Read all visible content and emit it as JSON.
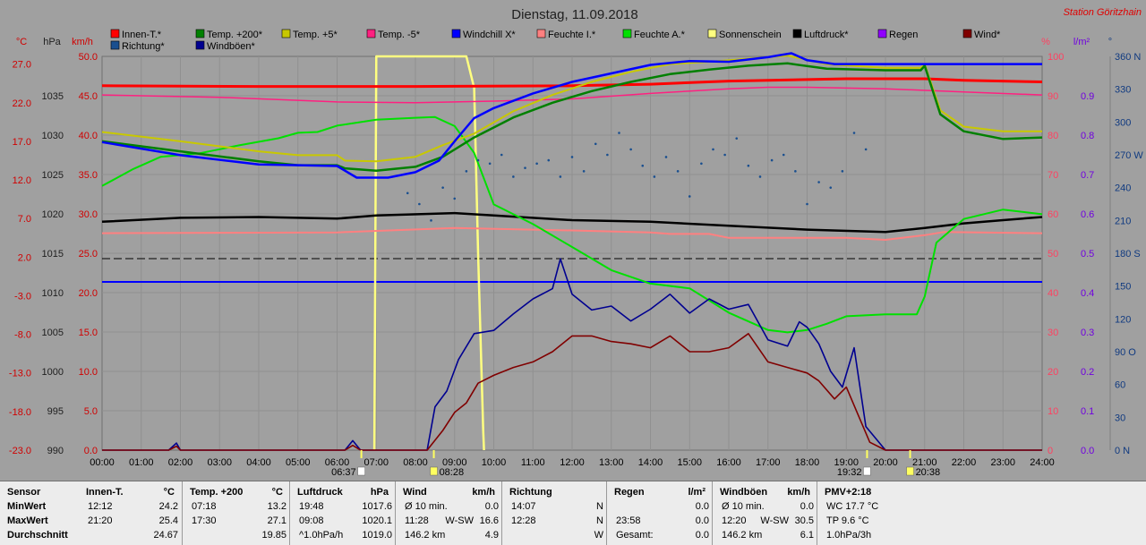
{
  "chart_data": {
    "type": "line",
    "title": "Dienstag, 11.09.2018",
    "station": "Station Göritzhain",
    "axes": {
      "celsius": {
        "unit": "°C",
        "ticks": [
          -23.0,
          -18.0,
          -13.0,
          -8.0,
          -3.0,
          2.0,
          7.0,
          12.0,
          17.0,
          22.0,
          27.0
        ],
        "range": [
          -23,
          28
        ]
      },
      "hpa": {
        "unit": "hPa",
        "ticks": [
          990,
          995,
          1000,
          1005,
          1010,
          1015,
          1020,
          1025,
          1030,
          1035
        ],
        "range": [
          990,
          1040
        ]
      },
      "kmh": {
        "unit": "km/h",
        "ticks": [
          0.0,
          5.0,
          10.0,
          15.0,
          20.0,
          25.0,
          30.0,
          35.0,
          40.0,
          45.0,
          50.0
        ],
        "range": [
          0,
          50
        ]
      },
      "percent": {
        "unit": "%",
        "ticks": [
          0,
          10,
          20,
          30,
          40,
          50,
          60,
          70,
          80,
          90,
          100
        ],
        "range": [
          0,
          100
        ]
      },
      "rain": {
        "unit": "l/m²",
        "ticks": [
          0.0,
          0.1,
          0.2,
          0.3,
          0.4,
          0.5,
          0.6,
          0.7,
          0.8,
          0.9
        ],
        "range": [
          0,
          1
        ]
      },
      "direction": {
        "unit": "°",
        "ticks": [
          "0 N",
          "30",
          "60",
          "90 O",
          "120",
          "150",
          "180 S",
          "210",
          "240",
          "270 W",
          "300",
          "330",
          "360 N"
        ],
        "range": [
          0,
          360
        ]
      },
      "time": {
        "ticks": [
          "00:00",
          "01:00",
          "02:00",
          "03:00",
          "04:00",
          "05:00",
          "06:00",
          "07:00",
          "08:00",
          "09:00",
          "10:00",
          "11:00",
          "12:00",
          "13:00",
          "14:00",
          "15:00",
          "16:00",
          "17:00",
          "18:00",
          "19:00",
          "20:00",
          "21:00",
          "22:00",
          "23:00",
          "24:00"
        ],
        "range": [
          0,
          24
        ]
      }
    },
    "markers": {
      "sunrise": "06:37",
      "sunrise_h": 6.62,
      "noon": "08:28",
      "noon_h": 8.47,
      "sunset": "19:32",
      "sunset_h": 19.53,
      "moon": "20:38",
      "moon_h": 20.63
    },
    "legend": [
      {
        "name": "Innen-T.*",
        "color": "#ff0000"
      },
      {
        "name": "Temp. +200*",
        "color": "#008000"
      },
      {
        "name": "Temp. +5*",
        "color": "#c8c800"
      },
      {
        "name": "Temp. -5*",
        "color": "#ff2080"
      },
      {
        "name": "Windchill X*",
        "color": "#0000ff"
      },
      {
        "name": "Feuchte I.*",
        "color": "#ff8080"
      },
      {
        "name": "Feuchte A.*",
        "color": "#00e000"
      },
      {
        "name": "Sonnenschein",
        "color": "#ffff80"
      },
      {
        "name": "Luftdruck*",
        "color": "#000000"
      },
      {
        "name": "Regen",
        "color": "#9000ff"
      },
      {
        "name": "Wind*",
        "color": "#800000"
      },
      {
        "name": "Richtung*",
        "color": "#1a4f8f"
      },
      {
        "name": "Windböen*",
        "color": "#000090"
      }
    ],
    "series": [
      {
        "name": "Innen-T.*",
        "axis": "celsius",
        "color": "#ff0000",
        "x": [
          0,
          4,
          8,
          12,
          14,
          16,
          18,
          19,
          21,
          22,
          24
        ],
        "y": [
          24.2,
          24.1,
          24.1,
          24.2,
          24.4,
          24.8,
          25.0,
          25.1,
          25.1,
          24.9,
          24.7
        ]
      },
      {
        "name": "Temp. +200*",
        "axis": "celsius",
        "color": "#008000",
        "x": [
          0,
          2,
          4,
          5,
          6,
          6.2,
          7,
          8,
          8.7,
          9.5,
          10.5,
          11.5,
          12.5,
          13.5,
          14.5,
          15.5,
          16.5,
          17.5,
          18.5,
          20,
          20.9,
          21,
          21.4,
          22,
          23,
          24
        ],
        "y": [
          17.0,
          15.7,
          14.4,
          13.9,
          13.9,
          13.5,
          13.2,
          13.7,
          15.0,
          17.5,
          20.1,
          22.0,
          23.5,
          24.7,
          25.7,
          26.3,
          26.8,
          27.1,
          26.4,
          26.2,
          26.2,
          26.8,
          20.5,
          18.3,
          17.3,
          17.5
        ]
      },
      {
        "name": "Temp. +5*",
        "axis": "celsius",
        "color": "#c8c800",
        "x": [
          0,
          2,
          4,
          5,
          6,
          6.2,
          7,
          8,
          8.7,
          9.5,
          10.5,
          11.5,
          12.5,
          13.5,
          14.5,
          15.5,
          16.5,
          17.5,
          18.5,
          20,
          20.9,
          21,
          21.4,
          22,
          23,
          24
        ],
        "y": [
          18.2,
          17.0,
          15.7,
          15.2,
          15.2,
          14.5,
          14.4,
          15.0,
          16.5,
          18.0,
          20.9,
          23.0,
          24.7,
          26.0,
          27.0,
          27.3,
          27.7,
          28.1,
          27.0,
          26.5,
          26.5,
          27.0,
          21.0,
          18.9,
          18.3,
          18.3
        ]
      },
      {
        "name": "Temp. -5*",
        "axis": "celsius",
        "color": "#ff2080",
        "x": [
          0,
          3,
          6,
          8,
          10,
          12,
          14,
          16,
          17,
          18,
          20,
          22,
          24
        ],
        "y": [
          23.0,
          22.7,
          22.1,
          22.0,
          22.2,
          22.5,
          23.2,
          23.8,
          24.0,
          24.0,
          23.8,
          23.4,
          23.0
        ]
      },
      {
        "name": "Windchill X*",
        "axis": "celsius",
        "color": "#0000ff",
        "x": [
          0,
          2,
          4,
          5,
          6,
          6.5,
          7.3,
          8,
          8.6,
          9,
          9.5,
          10,
          11,
          12,
          13,
          14,
          15,
          16,
          17,
          17.6,
          18,
          18.7,
          19.5,
          24
        ],
        "y": [
          16.9,
          15.2,
          14.0,
          13.9,
          13.8,
          12.3,
          12.3,
          13.0,
          14.5,
          17.0,
          20.0,
          21.3,
          23.2,
          24.7,
          25.8,
          26.9,
          27.4,
          27.3,
          27.9,
          28.4,
          27.5,
          27.0,
          27.0,
          27.0
        ]
      },
      {
        "name": "Feuchte I.*",
        "axis": "percent",
        "color": "#ff8080",
        "x": [
          0,
          6,
          9,
          12,
          14,
          14.5,
          15.5,
          16,
          18,
          19,
          20,
          21,
          21.5,
          24
        ],
        "y": [
          55.1,
          55.3,
          56.4,
          55.8,
          55.3,
          54.9,
          54.9,
          53.9,
          53.9,
          53.9,
          53.4,
          54.6,
          55.4,
          55.1
        ]
      },
      {
        "name": "Feuchte A.*",
        "axis": "percent",
        "color": "#00e000",
        "x": [
          0,
          0.8,
          1.5,
          2.5,
          3.5,
          4.5,
          5,
          5.5,
          6,
          7,
          8,
          8.5,
          9,
          9.5,
          10,
          11,
          12,
          13,
          14,
          15,
          16,
          17,
          17.5,
          18,
          18.5,
          19,
          20,
          20.8,
          21,
          21.3,
          22,
          23,
          24
        ],
        "y": [
          67.1,
          71.4,
          74.5,
          75.4,
          77.4,
          79.2,
          80.6,
          80.8,
          82.4,
          83.9,
          84.4,
          84.6,
          82.3,
          75.5,
          62.4,
          57.4,
          51.6,
          45.7,
          42.3,
          41.1,
          34.9,
          30.5,
          29.9,
          30.5,
          32.1,
          34.0,
          34.5,
          34.5,
          39.0,
          52.7,
          58.7,
          61.1,
          59.9
        ]
      },
      {
        "name": "Luftdruck*",
        "axis": "hpa",
        "color": "#000000",
        "x": [
          0,
          2,
          4,
          6,
          7,
          9,
          10,
          12,
          14,
          16,
          18,
          20,
          21,
          22,
          23,
          24
        ],
        "y": [
          1019.0,
          1019.5,
          1019.6,
          1019.4,
          1019.8,
          1020.1,
          1019.8,
          1019.2,
          1019.0,
          1018.5,
          1018.0,
          1017.7,
          1018.2,
          1018.8,
          1019.2,
          1019.6
        ]
      },
      {
        "name": "Sonnenschein",
        "axis": "percent",
        "color": "#ffff80",
        "x": [
          6.95,
          7.0,
          9.3,
          9.5,
          9.6,
          9.73,
          9.75
        ],
        "y": [
          0,
          100,
          100,
          92,
          50,
          5,
          0
        ]
      },
      {
        "name": "Wind*",
        "axis": "kmh",
        "color": "#800000",
        "x": [
          0,
          1.7,
          1.9,
          2.0,
          6.2,
          6.4,
          6.6,
          8.3,
          8.7,
          9.0,
          9.3,
          9.6,
          10,
          10.5,
          11,
          11.5,
          12,
          12.5,
          13,
          13.5,
          14,
          14.5,
          15,
          15.5,
          16,
          16.5,
          17,
          17.5,
          18,
          18.3,
          18.7,
          19.0,
          19.3,
          19.6,
          20,
          24
        ],
        "y": [
          0,
          0,
          0.5,
          0,
          0,
          0.6,
          0,
          0,
          2.5,
          4.8,
          6.0,
          8.5,
          9.5,
          10.5,
          11.2,
          12.5,
          14.5,
          14.5,
          13.8,
          13.5,
          13.0,
          14.5,
          12.5,
          12.5,
          13.0,
          14.8,
          11.2,
          10.5,
          9.8,
          8.8,
          6.5,
          8.0,
          4.5,
          1.0,
          0,
          0
        ]
      },
      {
        "name": "Windböen*",
        "axis": "kmh",
        "color": "#000090",
        "x": [
          0,
          1.7,
          1.9,
          2.0,
          6.2,
          6.4,
          6.6,
          8.3,
          8.5,
          8.8,
          9.1,
          9.5,
          10,
          10.5,
          11,
          11.5,
          11.7,
          12,
          12.5,
          13,
          13.5,
          14,
          14.5,
          15,
          15.5,
          16,
          16.5,
          17,
          17.5,
          17.8,
          18,
          18.3,
          18.6,
          18.9,
          19.2,
          19.5,
          20,
          24
        ],
        "y": [
          0,
          0,
          0.9,
          0,
          0,
          1.2,
          0,
          0,
          5.5,
          7.5,
          11.5,
          14.8,
          15.2,
          17.3,
          19.2,
          20.5,
          24.3,
          19.8,
          17.8,
          18.3,
          16.4,
          17.9,
          19.8,
          17.4,
          19.2,
          17.9,
          18.5,
          14.0,
          13.2,
          16.3,
          15.6,
          13.5,
          10.0,
          8.0,
          13.0,
          3.0,
          0,
          0
        ]
      },
      {
        "name": "Richtung*",
        "axis": "direction",
        "color": "#1a4f8f",
        "type": "scatter",
        "x": [
          7.8,
          8.1,
          8.4,
          8.7,
          9.0,
          9.3,
          9.6,
          9.9,
          10.2,
          10.5,
          10.8,
          11.1,
          11.4,
          11.7,
          12.0,
          12.3,
          12.6,
          12.9,
          13.2,
          13.5,
          13.8,
          14.1,
          14.4,
          14.7,
          15.0,
          15.3,
          15.6,
          15.9,
          16.2,
          16.5,
          16.8,
          17.1,
          17.4,
          17.7,
          18.0,
          18.3,
          18.6,
          18.9,
          19.2,
          19.5
        ],
        "y": [
          235,
          225,
          210,
          240,
          230,
          255,
          265,
          262,
          270,
          250,
          258,
          262,
          265,
          250,
          268,
          255,
          280,
          270,
          290,
          275,
          260,
          250,
          268,
          255,
          232,
          262,
          275,
          270,
          285,
          260,
          250,
          265,
          270,
          255,
          225,
          245,
          240,
          255,
          290,
          275
        ]
      }
    ]
  },
  "stats": {
    "row_labels": [
      "Sensor",
      "MinWert",
      "MaxWert",
      "Durchschnitt"
    ],
    "groups": [
      {
        "title": "Innen-T.",
        "unit": "°C",
        "rows": [
          [
            "12:12",
            "",
            "24.2"
          ],
          [
            "21:20",
            "",
            "25.4"
          ],
          [
            "",
            "",
            "24.67"
          ]
        ]
      },
      {
        "title": "Temp. +200",
        "unit": "°C",
        "rows": [
          [
            "07:18",
            "",
            "13.2"
          ],
          [
            "17:30",
            "",
            "27.1"
          ],
          [
            "",
            "",
            "19.85"
          ]
        ]
      },
      {
        "title": "Luftdruck",
        "unit": "hPa",
        "rows": [
          [
            "19:48",
            "",
            "1017.6"
          ],
          [
            "09:08",
            "",
            "1020.1"
          ],
          [
            "^1.0hPa/h",
            "",
            "1019.0"
          ]
        ]
      },
      {
        "title": "Wind",
        "unit": "km/h",
        "rows": [
          [
            "Ø 10 min.",
            "",
            "0.0"
          ],
          [
            "11:28",
            "W-SW",
            "16.6"
          ],
          [
            "146.2 km",
            "",
            "4.9"
          ]
        ]
      },
      {
        "title": "Richtung",
        "unit": "",
        "rows": [
          [
            "14:07",
            "",
            "N"
          ],
          [
            "12:28",
            "",
            "N"
          ],
          [
            "",
            "",
            "W"
          ]
        ]
      },
      {
        "title": "Regen",
        "unit": "l/m²",
        "rows": [
          [
            "",
            "",
            "0.0"
          ],
          [
            "23:58",
            "",
            "0.0"
          ],
          [
            "Gesamt:",
            "",
            "0.0"
          ]
        ]
      },
      {
        "title": "Windböen",
        "unit": "km/h",
        "rows": [
          [
            "Ø 10 min.",
            "",
            "0.0"
          ],
          [
            "12:20",
            "W-SW",
            "30.5"
          ],
          [
            "146.2 km",
            "",
            "6.1"
          ]
        ]
      },
      {
        "title": "PMV+2:18",
        "unit": "",
        "rows": [
          [
            "WC 17.7 °C",
            "",
            ""
          ],
          [
            "TP 9.6 °C",
            "",
            ""
          ],
          [
            "1.0hPa/3h",
            "",
            ""
          ]
        ]
      }
    ]
  }
}
